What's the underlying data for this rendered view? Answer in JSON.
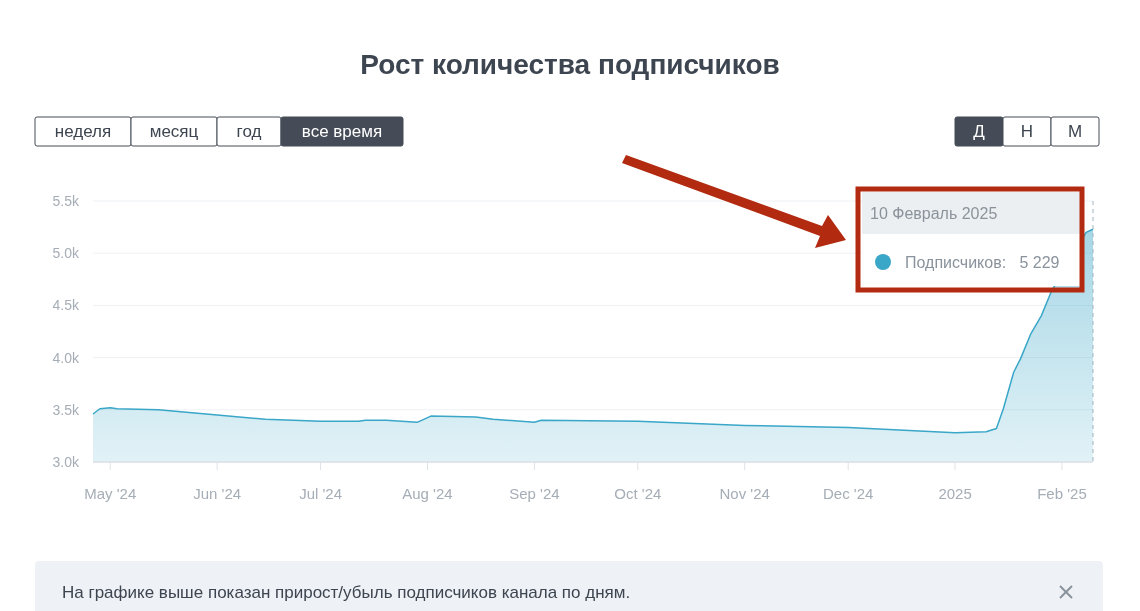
{
  "chart_data": {
    "type": "area",
    "title": "Рост количества подписчиков",
    "x": [
      "2024-04-26",
      "2024-04-28",
      "2024-05-01",
      "2024-05-03",
      "2024-05-15",
      "2024-06-01",
      "2024-06-15",
      "2024-07-01",
      "2024-07-12",
      "2024-07-14",
      "2024-07-20",
      "2024-07-29",
      "2024-08-02",
      "2024-08-15",
      "2024-08-20",
      "2024-09-01",
      "2024-09-03",
      "2024-10-01",
      "2024-11-01",
      "2024-12-01",
      "2025-01-01",
      "2025-01-10",
      "2025-01-13",
      "2025-01-15",
      "2025-01-18",
      "2025-01-20",
      "2025-01-23",
      "2025-01-26",
      "2025-01-29",
      "2025-02-01",
      "2025-02-05",
      "2025-02-08",
      "2025-02-10"
    ],
    "series": [
      {
        "color": "#3aa6c8",
        "values": [
          3460,
          3510,
          3520,
          3510,
          3500,
          3450,
          3410,
          3390,
          3390,
          3400,
          3400,
          3380,
          3440,
          3430,
          3410,
          3380,
          3400,
          3390,
          3350,
          3330,
          3280,
          3290,
          3320,
          3510,
          3860,
          3990,
          4230,
          4400,
          4640,
          null,
          null,
          5200,
          5229
        ]
      }
    ],
    "xlim": [
      "2024-04-26",
      "2025-02-10"
    ],
    "xticks": [
      {
        "value": "2024-05-01",
        "label": "May '24"
      },
      {
        "value": "2024-06-01",
        "label": "Jun '24"
      },
      {
        "value": "2024-07-01",
        "label": "Jul '24"
      },
      {
        "value": "2024-08-01",
        "label": "Aug '24"
      },
      {
        "value": "2024-09-01",
        "label": "Sep '24"
      },
      {
        "value": "2024-10-01",
        "label": "Oct '24"
      },
      {
        "value": "2024-11-01",
        "label": "Nov '24"
      },
      {
        "value": "2024-12-01",
        "label": "Dec '24"
      },
      {
        "value": "2025-01-01",
        "label": "2025"
      },
      {
        "value": "2025-02-01",
        "label": "Feb '25"
      }
    ],
    "ylim": [
      3000,
      5500
    ],
    "yticks": [
      {
        "value": 3000,
        "label": "3.0k"
      },
      {
        "value": 3500,
        "label": "3.5k"
      },
      {
        "value": 4000,
        "label": "4.0k"
      },
      {
        "value": 4500,
        "label": "4.5k"
      },
      {
        "value": 5000,
        "label": "5.0k"
      },
      {
        "value": 5500,
        "label": "5.5k"
      }
    ],
    "grid": "y",
    "ref_lines": [
      {
        "axis": "x",
        "value": "2025-02-10",
        "label": null,
        "color": "#9fb4bf",
        "line_style": "dashed"
      }
    ],
    "annotations": [
      "неделя",
      "месяц",
      "год",
      "все время",
      "Д",
      "Н",
      "М",
      "10 Февраль 2025",
      "Подписчиков:   5 229",
      "На графике выше показан прирост/убыль подписчиков канала по дням."
    ]
  }
}
